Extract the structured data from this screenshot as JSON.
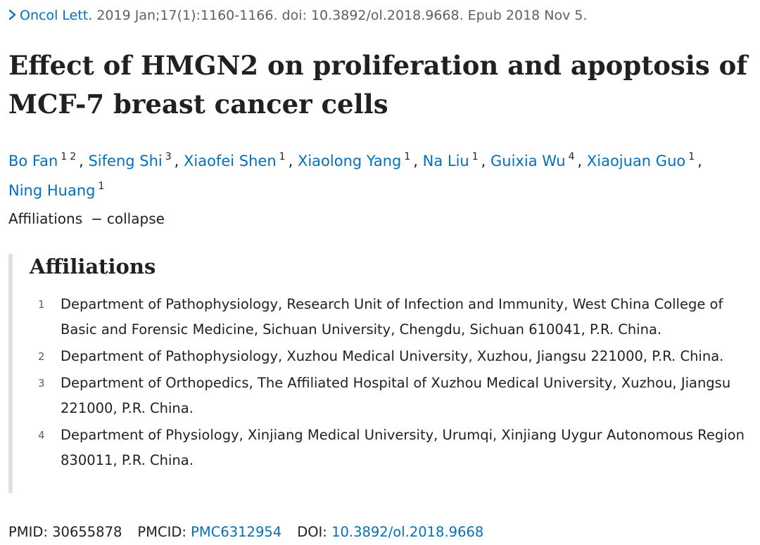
{
  "citation": {
    "journal": "Oncol Lett.",
    "details": " 2019 Jan;17(1):1160-1166. doi: 10.3892/ol.2018.9668. Epub 2018 Nov 5."
  },
  "title": "Effect of HMGN2 on proliferation and apoptosis of MCF-7 breast cancer cells",
  "authors": [
    {
      "name": "Bo Fan",
      "sups": [
        "1",
        "2"
      ]
    },
    {
      "name": "Sifeng Shi",
      "sups": [
        "3"
      ]
    },
    {
      "name": "Xiaofei Shen",
      "sups": [
        "1"
      ]
    },
    {
      "name": "Xiaolong Yang",
      "sups": [
        "1"
      ]
    },
    {
      "name": "Na Liu",
      "sups": [
        "1"
      ]
    },
    {
      "name": "Guixia Wu",
      "sups": [
        "4"
      ]
    },
    {
      "name": "Xiaojuan Guo",
      "sups": [
        "1"
      ]
    },
    {
      "name": "Ning Huang",
      "sups": [
        "1"
      ]
    }
  ],
  "affiliations_toggle": {
    "label": "Affiliations",
    "dash": "−",
    "action": "collapse"
  },
  "affiliations": {
    "heading": "Affiliations",
    "items": [
      {
        "num": "1",
        "text": "Department of Pathophysiology, Research Unit of Infection and Immunity, West China College of Basic and Forensic Medicine, Sichuan University, Chengdu, Sichuan 610041, P.R. China."
      },
      {
        "num": "2",
        "text": "Department of Pathophysiology, Xuzhou Medical University, Xuzhou, Jiangsu 221000, P.R. China."
      },
      {
        "num": "3",
        "text": "Department of Orthopedics, The Affiliated Hospital of Xuzhou Medical University, Xuzhou, Jiangsu 221000, P.R. China."
      },
      {
        "num": "4",
        "text": "Department of Physiology, Xinjiang Medical University, Urumqi, Xinjiang Uygur Autonomous Region 830011, P.R. China."
      }
    ]
  },
  "identifiers": {
    "pmid_label": "PMID:",
    "pmid": "30655878",
    "pmcid_label": "PMCID:",
    "pmcid": "PMC6312954",
    "doi_label": "DOI:",
    "doi": "10.3892/ol.2018.9668"
  },
  "colors": {
    "link": "#0071bc",
    "text": "#212121",
    "muted": "#5b616b",
    "rule": "#dfe1e2"
  }
}
